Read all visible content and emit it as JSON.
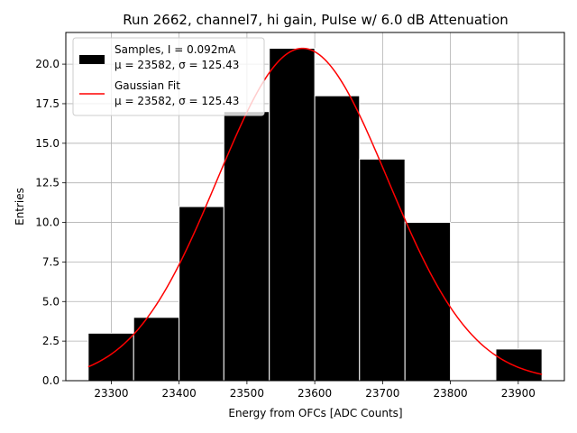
{
  "chart_data": {
    "type": "bar",
    "title": "Run 2662, channel7, hi gain, Pulse w/ 6.0 dB Attenuation",
    "xlabel": "Energy from OFCs [ADC Counts]",
    "ylabel": "Entries",
    "xlim": [
      23233,
      23968
    ],
    "ylim": [
      0,
      22
    ],
    "xticks": [
      23300,
      23400,
      23500,
      23600,
      23700,
      23800,
      23900
    ],
    "yticks": [
      0,
      2.5,
      5,
      7.5,
      10,
      12.5,
      15,
      17.5,
      20
    ],
    "xtick_labels": [
      "23300",
      "23400",
      "23500",
      "23600",
      "23700",
      "23800",
      "23900"
    ],
    "ytick_labels": [
      "0.0",
      "2.5",
      "5.0",
      "7.5",
      "10.0",
      "12.5",
      "15.0",
      "17.5",
      "20.0"
    ],
    "grid": true,
    "legend_position": "upper-left",
    "bins": [
      {
        "x0": 23266,
        "x1": 23333,
        "count": 3
      },
      {
        "x0": 23333,
        "x1": 23400,
        "count": 4
      },
      {
        "x0": 23400,
        "x1": 23466,
        "count": 11
      },
      {
        "x0": 23466,
        "x1": 23533,
        "count": 17
      },
      {
        "x0": 23533,
        "x1": 23600,
        "count": 21
      },
      {
        "x0": 23600,
        "x1": 23666,
        "count": 18
      },
      {
        "x0": 23666,
        "x1": 23733,
        "count": 14
      },
      {
        "x0": 23733,
        "x1": 23800,
        "count": 10
      },
      {
        "x0": 23800,
        "x1": 23867,
        "count": 0
      },
      {
        "x0": 23867,
        "x1": 23935,
        "count": 2
      }
    ],
    "fit": {
      "mu": 23582,
      "sigma": 125.43,
      "amplitude": 21,
      "xmin": 23266,
      "xmax": 23935
    },
    "series": [
      {
        "name": "Samples, I = 0.092mA",
        "stats": "μ = 23582, σ = 125.43",
        "color": "#000000",
        "kind": "histogram"
      },
      {
        "name": "Gaussian Fit",
        "stats": "μ = 23582, σ = 125.43",
        "color": "#ff0000",
        "kind": "line"
      }
    ]
  }
}
